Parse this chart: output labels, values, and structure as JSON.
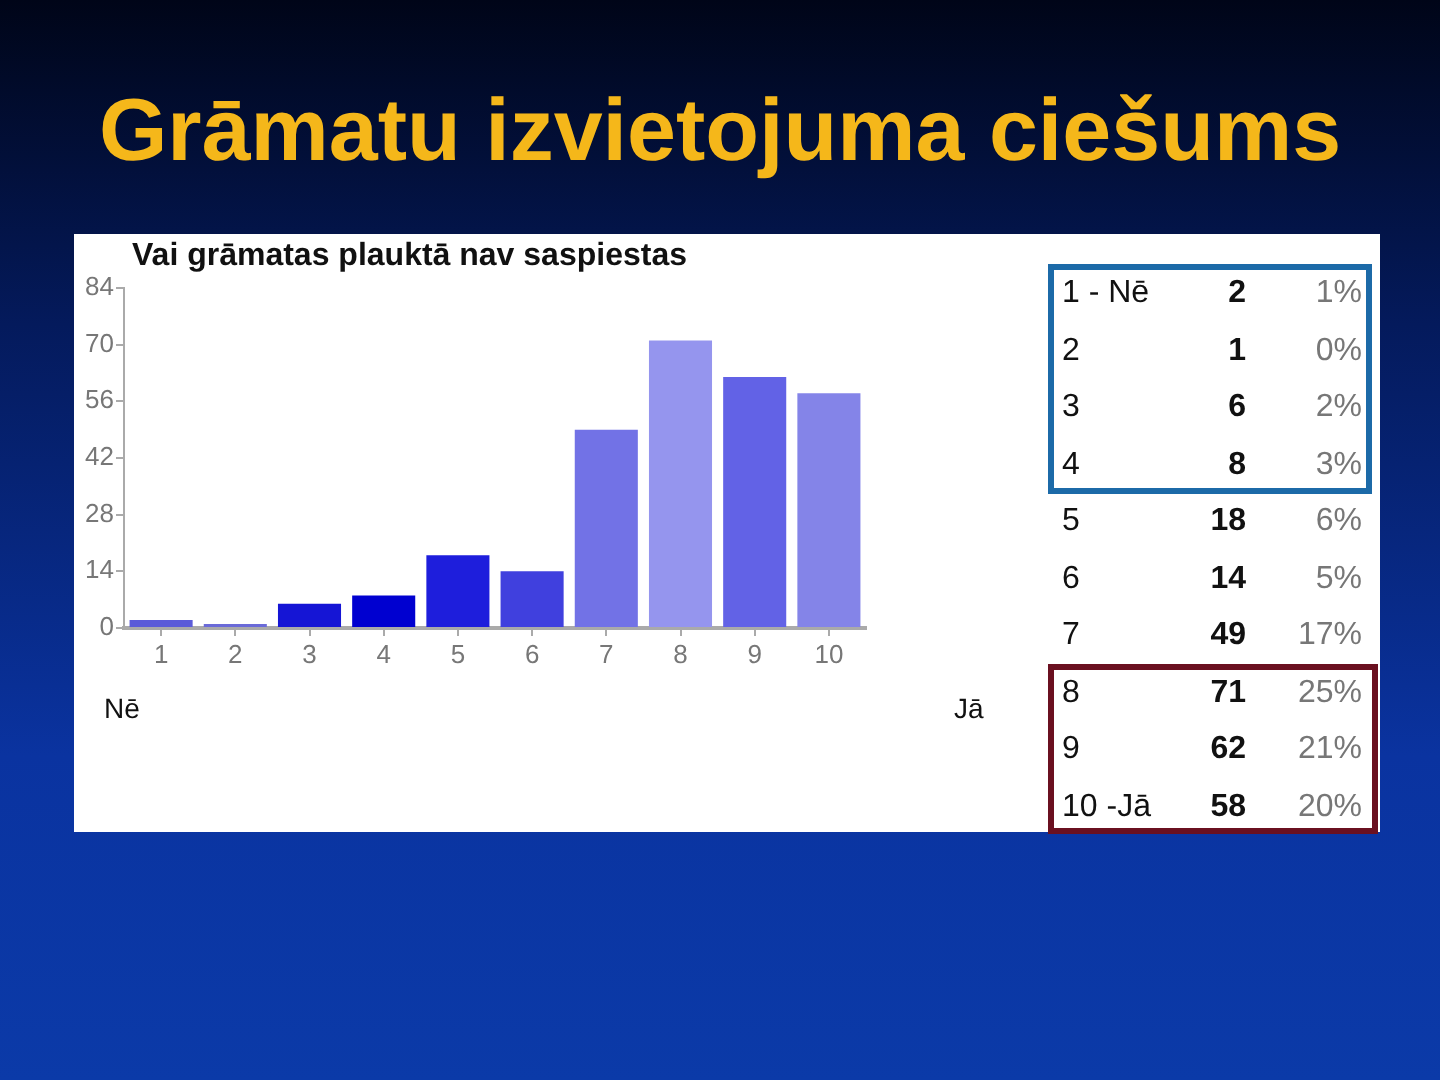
{
  "chart_data": {
    "type": "bar",
    "title": "Grāmatu izvietojuma ciešums",
    "subtitle": "Vai grāmatas plauktā nav saspiestas",
    "categories": [
      "1",
      "2",
      "3",
      "4",
      "5",
      "6",
      "7",
      "8",
      "9",
      "10"
    ],
    "values": [
      2,
      1,
      6,
      8,
      18,
      14,
      49,
      71,
      62,
      58
    ],
    "colors": [
      "#5b5bd9",
      "#6a6ad8",
      "#1515d5",
      "#0000d0",
      "#1e1edc",
      "#4040de",
      "#7272e6",
      "#9595ee",
      "#6262e6",
      "#8484e8"
    ],
    "ylim": [
      0,
      84
    ],
    "yticks": [
      0,
      14,
      28,
      42,
      56,
      70,
      84
    ],
    "annotations": [
      "Nē",
      "Jā",
      "1 - Nē",
      "2",
      "1%",
      "2",
      "1",
      "0%",
      "3",
      "6",
      "2%",
      "4",
      "8",
      "3%",
      "5",
      "18",
      "6%",
      "6",
      "14",
      "5%",
      "7",
      "49",
      "17%",
      "8",
      "71",
      "25%",
      "9",
      "62",
      "21%",
      "10 -Jā",
      "58",
      "20%"
    ]
  }
}
